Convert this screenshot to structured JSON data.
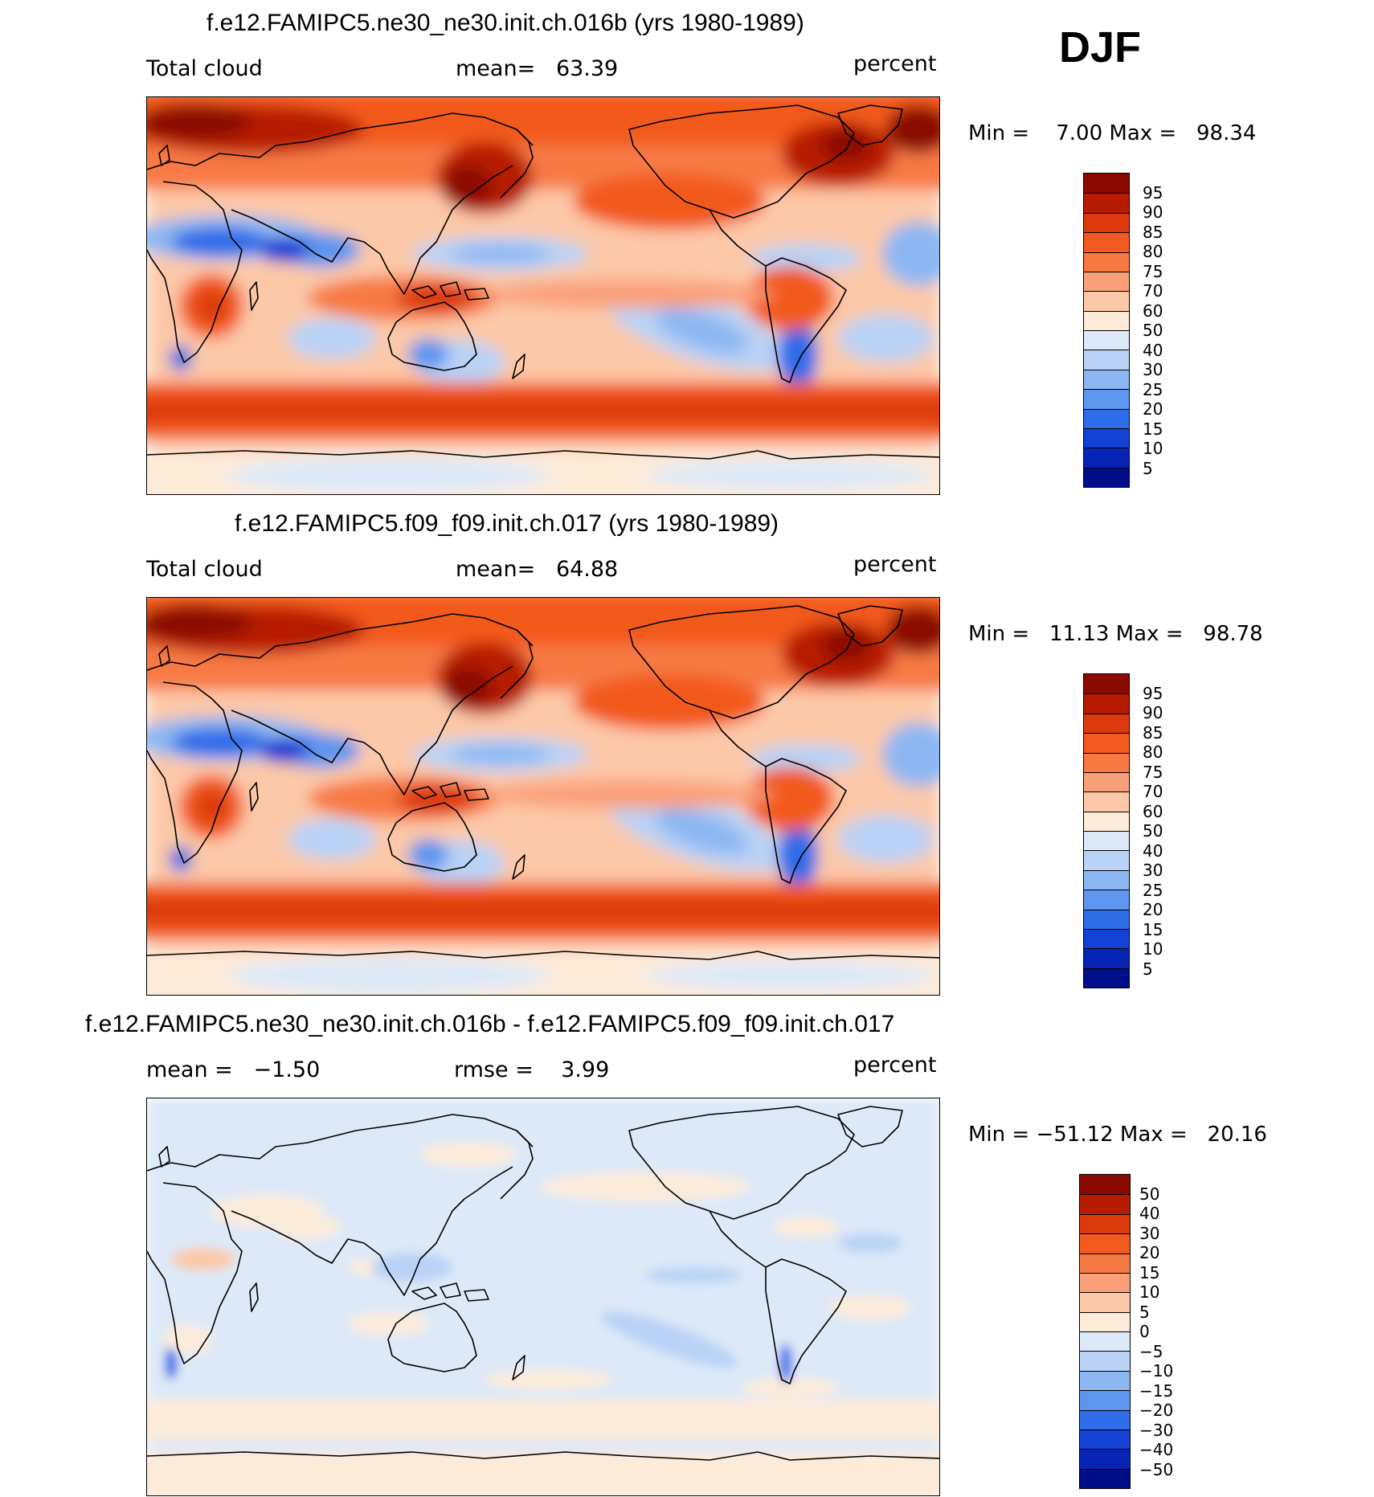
{
  "season": "DJF",
  "panels": [
    {
      "title": "f.e12.FAMIPC5.ne30_ne30.init.ch.016b (yrs 1980-1989)",
      "left_label": "Total cloud",
      "center_label": "mean=   63.39",
      "units": "percent",
      "minmax": "Min =    7.00 Max =   98.34",
      "colorbar_labels": [
        "95",
        "90",
        "85",
        "80",
        "75",
        "70",
        "60",
        "50",
        "40",
        "30",
        "25",
        "20",
        "15",
        "10",
        "5"
      ],
      "colors": [
        "#8b0a00",
        "#b71c00",
        "#dc3a0c",
        "#f25a1f",
        "#f77a45",
        "#f9a07a",
        "#fcc8a8",
        "#fdebd9",
        "#dde9f8",
        "#b9d2f5",
        "#8db7f2",
        "#5d95ef",
        "#2e6ce8",
        "#1241d4",
        "#0625b5",
        "#000e8a"
      ],
      "field": "base"
    },
    {
      "title": "f.e12.FAMIPC5.f09_f09.init.ch.017 (yrs 1980-1989)",
      "left_label": "Total cloud",
      "center_label": "mean=   64.88",
      "units": "percent",
      "minmax": "Min =   11.13 Max =   98.78",
      "colorbar_labels": [
        "95",
        "90",
        "85",
        "80",
        "75",
        "70",
        "60",
        "50",
        "40",
        "30",
        "25",
        "20",
        "15",
        "10",
        "5"
      ],
      "colors": [
        "#8b0a00",
        "#b71c00",
        "#dc3a0c",
        "#f25a1f",
        "#f77a45",
        "#f9a07a",
        "#fcc8a8",
        "#fdebd9",
        "#dde9f8",
        "#b9d2f5",
        "#8db7f2",
        "#5d95ef",
        "#2e6ce8",
        "#1241d4",
        "#0625b5",
        "#000e8a"
      ],
      "field": "base"
    },
    {
      "title": "f.e12.FAMIPC5.ne30_ne30.init.ch.016b - f.e12.FAMIPC5.f09_f09.init.ch.017",
      "left_label": "mean =   −1.50",
      "center_label": "rmse =    3.99",
      "units": "percent",
      "minmax": "Min = −51.12 Max =   20.16",
      "colorbar_labels": [
        "50",
        "40",
        "30",
        "20",
        "15",
        "10",
        "5",
        "0",
        "−5",
        "−10",
        "−15",
        "−20",
        "−30",
        "−40",
        "−50"
      ],
      "colors": [
        "#8b0a00",
        "#b71c00",
        "#dc3a0c",
        "#f25a1f",
        "#f77a45",
        "#f9a07a",
        "#fcc8a8",
        "#fdebd9",
        "#dde9f8",
        "#b9d2f5",
        "#8db7f2",
        "#5d95ef",
        "#2e6ce8",
        "#1241d4",
        "#0625b5",
        "#000e8a"
      ],
      "field": "diff"
    }
  ]
}
